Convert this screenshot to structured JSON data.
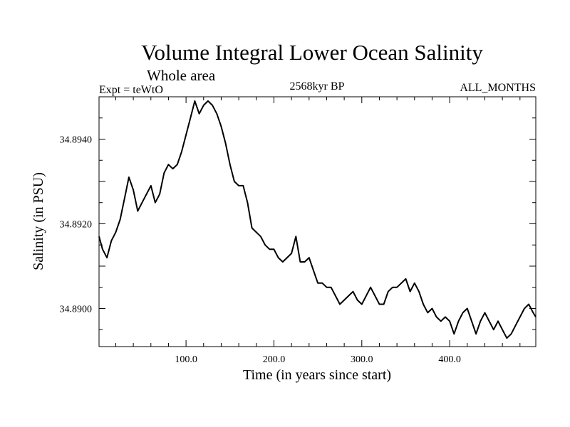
{
  "chart_data": {
    "type": "line",
    "title": "Volume Integral Lower Ocean Salinity",
    "subtitle": "Whole area",
    "left_label": "Expt = teWtO",
    "center_label": "2568kyr BP",
    "right_label": "ALL_MONTHS",
    "xlabel": "Time (in years since start)",
    "ylabel": "Salinity (in PSU)",
    "xlim": [
      1,
      498
    ],
    "ylim": [
      34.8891,
      34.895
    ],
    "x_ticks": [
      100,
      200,
      300,
      400
    ],
    "x_tick_labels": [
      "100.0",
      "200.0",
      "300.0",
      "400.0"
    ],
    "y_ticks": [
      34.89,
      34.892,
      34.894
    ],
    "y_tick_labels": [
      "34.8900",
      "34.8920",
      "34.8940"
    ],
    "series": [
      {
        "name": "salinity",
        "color": "#000000",
        "x": [
          1,
          5,
          10,
          15,
          20,
          25,
          30,
          35,
          40,
          45,
          50,
          55,
          60,
          65,
          70,
          75,
          80,
          85,
          90,
          95,
          100,
          105,
          110,
          115,
          120,
          125,
          130,
          135,
          140,
          145,
          150,
          155,
          160,
          165,
          170,
          175,
          180,
          185,
          190,
          195,
          200,
          205,
          210,
          215,
          220,
          225,
          230,
          235,
          240,
          245,
          250,
          255,
          260,
          265,
          270,
          275,
          280,
          285,
          290,
          295,
          300,
          305,
          310,
          315,
          320,
          325,
          330,
          335,
          340,
          345,
          350,
          355,
          360,
          365,
          370,
          375,
          380,
          385,
          390,
          395,
          400,
          405,
          410,
          415,
          420,
          425,
          430,
          435,
          440,
          445,
          450,
          455,
          460,
          465,
          470,
          475,
          480,
          485,
          490,
          495,
          498
        ],
        "values": [
          34.8917,
          34.8914,
          34.8912,
          34.8916,
          34.8918,
          34.8921,
          34.8926,
          34.8931,
          34.8928,
          34.8923,
          34.8925,
          34.8927,
          34.8929,
          34.8925,
          34.8927,
          34.8932,
          34.8934,
          34.8933,
          34.8934,
          34.8937,
          34.8941,
          34.8945,
          34.8949,
          34.8946,
          34.8948,
          34.8949,
          34.8948,
          34.8946,
          34.8943,
          34.8939,
          34.8934,
          34.893,
          34.8929,
          34.8929,
          34.8925,
          34.8919,
          34.8918,
          34.8917,
          34.8915,
          34.8914,
          34.8914,
          34.8912,
          34.8911,
          34.8912,
          34.8913,
          34.8917,
          34.8911,
          34.8911,
          34.8912,
          34.8909,
          34.8906,
          34.8906,
          34.8905,
          34.8905,
          34.8903,
          34.8901,
          34.8902,
          34.8903,
          34.8904,
          34.8902,
          34.8901,
          34.8903,
          34.8905,
          34.8903,
          34.8901,
          34.8901,
          34.8904,
          34.8905,
          34.8905,
          34.8906,
          34.8907,
          34.8904,
          34.8906,
          34.8904,
          34.8901,
          34.8899,
          34.89,
          34.8898,
          34.8897,
          34.8898,
          34.8897,
          34.8894,
          34.8897,
          34.8899,
          34.89,
          34.8897,
          34.8894,
          34.8897,
          34.8899,
          34.8897,
          34.8895,
          34.8897,
          34.8895,
          34.8893,
          34.8894,
          34.8896,
          34.8898,
          34.89,
          34.8901,
          34.8899,
          34.8898
        ]
      }
    ]
  }
}
